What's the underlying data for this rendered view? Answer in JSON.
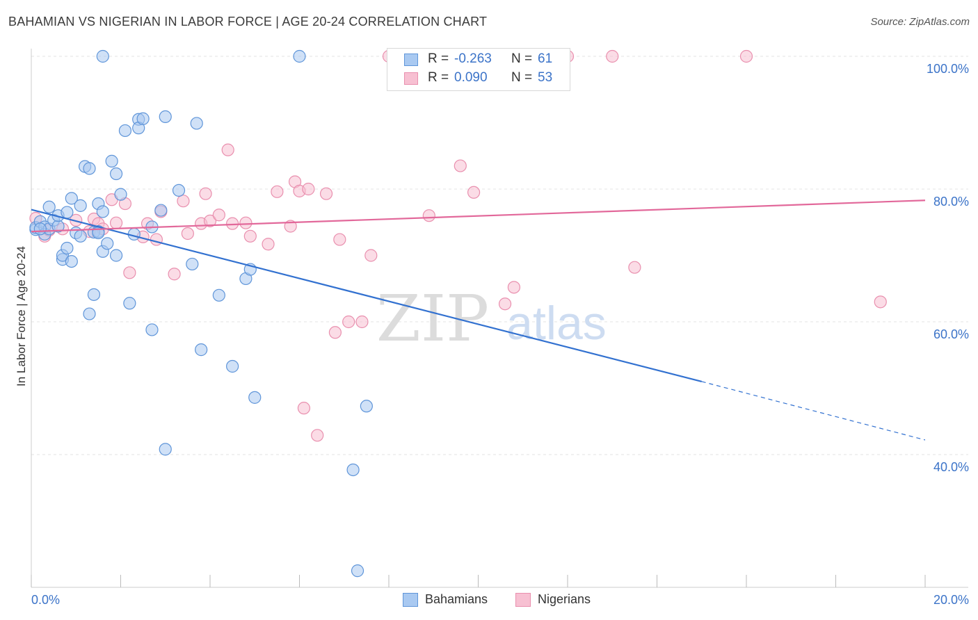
{
  "title": "BAHAMIAN VS NIGERIAN IN LABOR FORCE | AGE 20-24 CORRELATION CHART",
  "source": "Source: ZipAtlas.com",
  "watermark": {
    "zip": "ZIP",
    "atlas": "atlas"
  },
  "stats": [
    {
      "r_label": "R =",
      "r_value": "-0.263",
      "n_label": "N =",
      "n_value": "61"
    },
    {
      "r_label": "R =",
      "r_value": "0.090",
      "n_label": "N =",
      "n_value": "53"
    }
  ],
  "legend": [
    "Bahamians",
    "Nigerians"
  ],
  "colors": {
    "bahamian_fill": "#a9c9f1",
    "bahamian_stroke": "#5f95d9",
    "bahamian_line": "#3271d0",
    "nigerian_fill": "#f7c0d2",
    "nigerian_stroke": "#e98fae",
    "nigerian_line": "#e2689a",
    "tick_label": "#3b73c8",
    "grid": "#e3e3e3"
  },
  "chart_data": {
    "type": "scatter",
    "title": "BAHAMIAN VS NIGERIAN IN LABOR FORCE | AGE 20-24 CORRELATION CHART",
    "xlabel": "",
    "ylabel": "In Labor Force | Age 20-24",
    "xlim": [
      0,
      20
    ],
    "ylim": [
      20,
      102
    ],
    "x_tick_labels": [
      "0.0%",
      "20.0%"
    ],
    "y_ticks": [
      40,
      60,
      80,
      100
    ],
    "y_tick_labels": [
      "40.0%",
      "60.0%",
      "80.0%",
      "100.0%"
    ],
    "grid": true,
    "legend_position": "bottom-center",
    "series": [
      {
        "name": "Bahamians",
        "points": [
          [
            0.1,
            73.9
          ],
          [
            0.1,
            74.2
          ],
          [
            0.2,
            75.1
          ],
          [
            0.3,
            74.3
          ],
          [
            0.3,
            73.2
          ],
          [
            0.4,
            77.3
          ],
          [
            0.4,
            74.0
          ],
          [
            0.5,
            75.3
          ],
          [
            0.6,
            74.4
          ],
          [
            0.6,
            76.0
          ],
          [
            0.7,
            69.4
          ],
          [
            0.7,
            70.0
          ],
          [
            0.8,
            71.1
          ],
          [
            0.8,
            76.5
          ],
          [
            0.9,
            69.1
          ],
          [
            0.9,
            78.6
          ],
          [
            1.0,
            73.4
          ],
          [
            1.1,
            72.9
          ],
          [
            1.1,
            77.5
          ],
          [
            1.2,
            83.4
          ],
          [
            1.3,
            83.1
          ],
          [
            1.3,
            61.2
          ],
          [
            1.4,
            64.1
          ],
          [
            1.4,
            73.5
          ],
          [
            1.5,
            77.8
          ],
          [
            1.5,
            73.6
          ],
          [
            1.5,
            73.4
          ],
          [
            1.6,
            70.6
          ],
          [
            1.6,
            100.0
          ],
          [
            1.6,
            76.6
          ],
          [
            1.7,
            71.8
          ],
          [
            1.8,
            84.2
          ],
          [
            1.9,
            82.3
          ],
          [
            1.9,
            70.0
          ],
          [
            2.0,
            79.2
          ],
          [
            2.1,
            88.8
          ],
          [
            2.2,
            62.8
          ],
          [
            2.3,
            73.2
          ],
          [
            2.4,
            90.5
          ],
          [
            2.4,
            89.2
          ],
          [
            2.5,
            90.6
          ],
          [
            2.7,
            74.3
          ],
          [
            2.7,
            58.8
          ],
          [
            2.9,
            76.8
          ],
          [
            3.0,
            90.9
          ],
          [
            3.0,
            40.8
          ],
          [
            3.3,
            79.8
          ],
          [
            3.6,
            68.7
          ],
          [
            3.7,
            89.9
          ],
          [
            3.8,
            55.8
          ],
          [
            4.2,
            64.0
          ],
          [
            4.5,
            53.3
          ],
          [
            4.8,
            66.5
          ],
          [
            4.9,
            67.9
          ],
          [
            5.0,
            48.6
          ],
          [
            6.0,
            100.0
          ],
          [
            7.2,
            37.7
          ],
          [
            7.3,
            22.5
          ],
          [
            7.5,
            47.3
          ],
          [
            8.3,
            100.0
          ],
          [
            0.2,
            74.0
          ]
        ]
      },
      {
        "name": "Nigerians",
        "points": [
          [
            0.1,
            75.6
          ],
          [
            0.3,
            72.9
          ],
          [
            0.4,
            73.8
          ],
          [
            0.7,
            74.0
          ],
          [
            1.0,
            75.3
          ],
          [
            1.3,
            73.6
          ],
          [
            1.4,
            75.5
          ],
          [
            1.5,
            74.8
          ],
          [
            1.6,
            74.0
          ],
          [
            1.8,
            78.4
          ],
          [
            1.9,
            74.9
          ],
          [
            2.1,
            77.8
          ],
          [
            2.2,
            67.4
          ],
          [
            2.5,
            72.8
          ],
          [
            2.6,
            74.8
          ],
          [
            2.8,
            72.4
          ],
          [
            2.9,
            76.6
          ],
          [
            3.2,
            67.2
          ],
          [
            3.4,
            78.2
          ],
          [
            3.5,
            73.3
          ],
          [
            3.8,
            74.8
          ],
          [
            3.9,
            79.3
          ],
          [
            4.0,
            75.2
          ],
          [
            4.2,
            76.1
          ],
          [
            4.4,
            85.9
          ],
          [
            4.5,
            74.8
          ],
          [
            4.8,
            74.9
          ],
          [
            4.9,
            72.9
          ],
          [
            5.3,
            71.7
          ],
          [
            5.5,
            79.6
          ],
          [
            5.8,
            74.4
          ],
          [
            5.9,
            81.1
          ],
          [
            6.0,
            79.7
          ],
          [
            6.1,
            47.0
          ],
          [
            6.2,
            80.0
          ],
          [
            6.4,
            42.9
          ],
          [
            6.6,
            79.3
          ],
          [
            6.8,
            58.4
          ],
          [
            6.9,
            72.4
          ],
          [
            7.1,
            60.0
          ],
          [
            7.4,
            60.0
          ],
          [
            7.6,
            70.0
          ],
          [
            8.0,
            100.0
          ],
          [
            8.9,
            76.0
          ],
          [
            9.6,
            83.5
          ],
          [
            9.9,
            79.5
          ],
          [
            10.6,
            62.7
          ],
          [
            10.8,
            65.2
          ],
          [
            12.0,
            100.0
          ],
          [
            13.0,
            100.0
          ],
          [
            13.5,
            68.2
          ],
          [
            16.0,
            100.0
          ],
          [
            19.0,
            63.0
          ]
        ]
      }
    ],
    "trend_lines": [
      {
        "series": "Bahamians",
        "from": [
          0,
          76.9
        ],
        "to": [
          15.0,
          51.0
        ],
        "dashed_to": [
          20.0,
          42.2
        ]
      },
      {
        "series": "Nigerians",
        "from": [
          0,
          73.6
        ],
        "to": [
          20.0,
          78.3
        ]
      }
    ]
  }
}
